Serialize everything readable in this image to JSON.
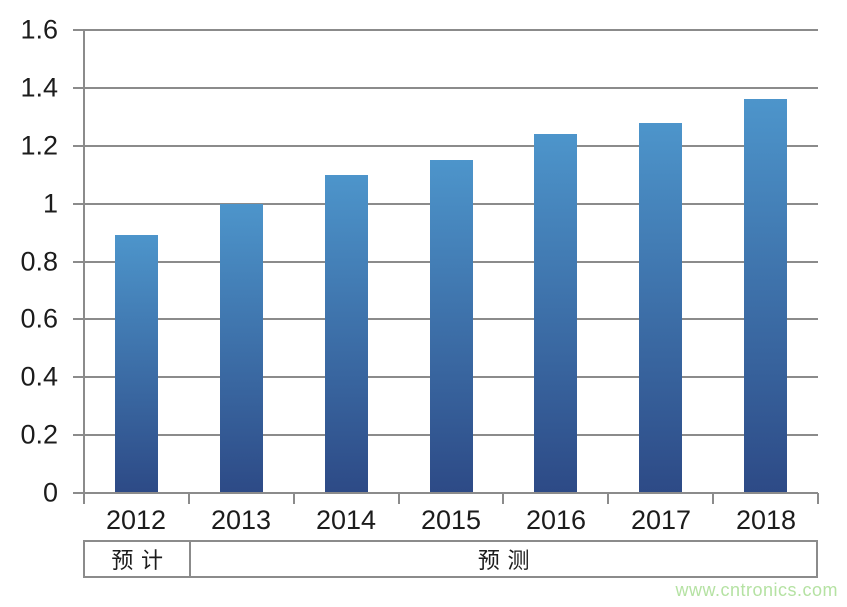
{
  "chart_data": {
    "type": "bar",
    "categories": [
      "2012",
      "2013",
      "2014",
      "2015",
      "2016",
      "2017",
      "2018"
    ],
    "values": [
      0.89,
      1.0,
      1.1,
      1.15,
      1.24,
      1.28,
      1.36
    ],
    "title": "",
    "xlabel": "",
    "ylabel": "",
    "ylim": [
      0,
      1.6
    ],
    "ytick_step": 0.2,
    "ytick_labels": [
      "1.6",
      "1.4",
      "1.2",
      "1",
      "0.8",
      "0.6",
      "0.4",
      "0.2",
      "0"
    ],
    "ytick_values": [
      1.6,
      1.4,
      1.2,
      1.0,
      0.8,
      0.6,
      0.4,
      0.2,
      0
    ],
    "grid": true,
    "legend": "none",
    "bar_color_top": "#4d95cb",
    "bar_color_bottom": "#2d4a86",
    "gridline_color": "#8b8b8b",
    "axis_text_color": "#1c1c1c"
  },
  "period_table": {
    "cells": [
      {
        "label": "预计",
        "span": 1
      },
      {
        "label": "预测",
        "span": 6
      }
    ]
  },
  "watermark": "www.cntronics.com",
  "colors": {
    "watermark_green": "#b5e2a3",
    "background": "#ffffff"
  }
}
